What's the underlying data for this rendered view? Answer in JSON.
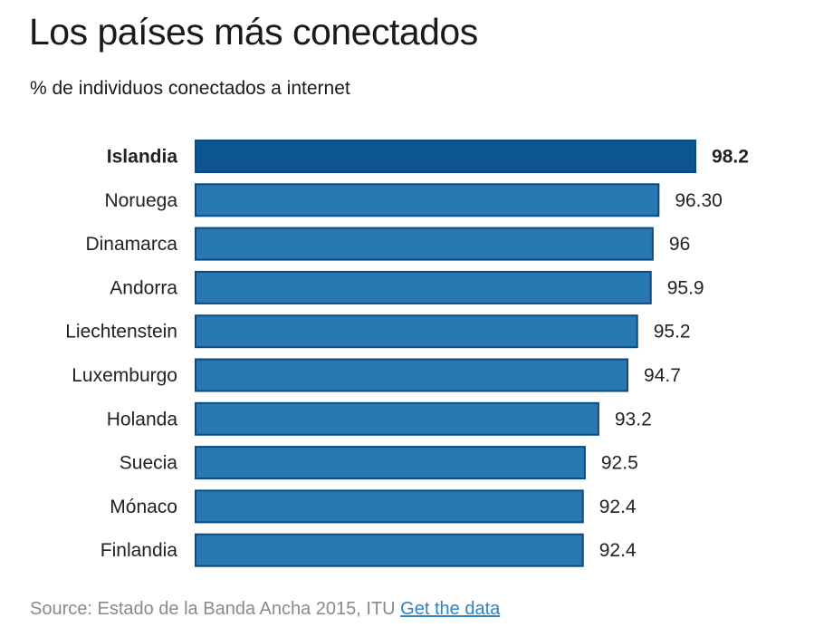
{
  "header": {
    "title": "Los países más conectados",
    "subtitle": "% de individuos conectados a internet"
  },
  "footer": {
    "source": "Source: Estado de la Banda Ancha 2015, ITU",
    "link": "Get the data"
  },
  "colors": {
    "bar": "#2878b4",
    "bar_highlight": "#0d5590",
    "bar_border": "#0c4a80"
  },
  "chart_data": {
    "type": "bar",
    "orientation": "horizontal",
    "title": "Los países más conectados",
    "subtitle": "% de individuos conectados a internet",
    "categories": [
      "Islandia",
      "Noruega",
      "Dinamarca",
      "Andorra",
      "Liechtenstein",
      "Luxemburgo",
      "Holanda",
      "Suecia",
      "Mónaco",
      "Finlandia"
    ],
    "values": [
      98.2,
      96.3,
      96,
      95.9,
      95.2,
      94.7,
      93.2,
      92.5,
      92.4,
      92.4
    ],
    "value_labels": [
      "98.2",
      "96.30",
      "96",
      "95.9",
      "95.2",
      "94.7",
      "93.2",
      "92.5",
      "92.4",
      "92.4"
    ],
    "highlight": "Islandia",
    "xlabel": "",
    "ylabel": "",
    "grid": false,
    "legend": "none"
  }
}
